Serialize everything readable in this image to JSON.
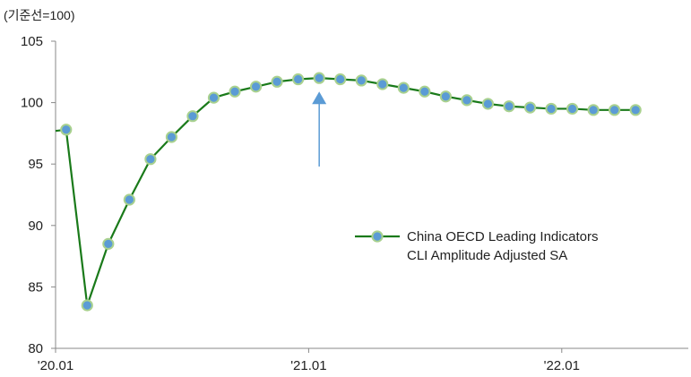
{
  "chart_data": {
    "type": "line",
    "unit_label": "(기준선=100)",
    "ylim": [
      80,
      105
    ],
    "y_ticks": [
      80,
      85,
      90,
      95,
      100,
      105
    ],
    "x_tick_labels": [
      "'20.01",
      "'21.01",
      "'22.01"
    ],
    "x_tick_indices": [
      0,
      12,
      24
    ],
    "x_range": [
      -0.5,
      29.5
    ],
    "grid": false,
    "legend_position": "center-right",
    "series": [
      {
        "name": "China OECD Leading Indicators CLI Amplitude Adjusted SA",
        "legend_lines": [
          "China OECD Leading Indicators",
          "CLI Amplitude Adjusted SA"
        ],
        "line_color": "#1a7a1a",
        "marker_fill": "#5b9bd5",
        "marker_stroke": "#a9d18e",
        "x": [
          "2020-01",
          "2020-02",
          "2020-03",
          "2020-04",
          "2020-05",
          "2020-06",
          "2020-07",
          "2020-08",
          "2020-09",
          "2020-10",
          "2020-11",
          "2020-12",
          "2021-01",
          "2021-02",
          "2021-03",
          "2021-04",
          "2021-05",
          "2021-06",
          "2021-07",
          "2021-08",
          "2021-09",
          "2021-10",
          "2021-11",
          "2021-12",
          "2022-01",
          "2022-02",
          "2022-03",
          "2022-04"
        ],
        "values": [
          97.8,
          83.5,
          88.5,
          92.1,
          95.4,
          97.2,
          98.9,
          100.4,
          100.9,
          101.3,
          101.7,
          101.9,
          102.0,
          101.9,
          101.8,
          101.5,
          101.2,
          100.9,
          100.5,
          100.2,
          99.9,
          99.7,
          99.6,
          99.5,
          99.5,
          99.4,
          99.4,
          99.4
        ]
      }
    ],
    "pre_start_value": 97.7,
    "annotation": {
      "type": "arrow",
      "direction": "up",
      "color": "#5b9bd5",
      "at_index": 12,
      "from_value": 94.8,
      "to_value": 100.9
    }
  }
}
